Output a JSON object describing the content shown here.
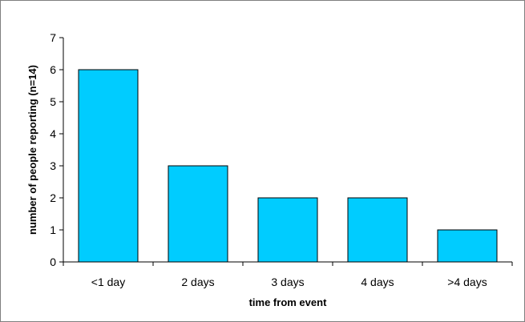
{
  "chart_data": {
    "type": "bar",
    "title": "",
    "xlabel": "time from event",
    "ylabel": "number of people reporting (n=14)",
    "categories": [
      "<1 day",
      "2 days",
      "3 days",
      "4 days",
      ">4 days"
    ],
    "values": [
      6,
      3,
      2,
      2,
      1
    ],
    "ylim": [
      0,
      7
    ],
    "yticks": [
      "0",
      "1",
      "2",
      "3",
      "4",
      "5",
      "6",
      "7"
    ],
    "grid": false,
    "legend": "none",
    "bar_color": "#00ccff",
    "bar_edge_color": "#000000"
  }
}
